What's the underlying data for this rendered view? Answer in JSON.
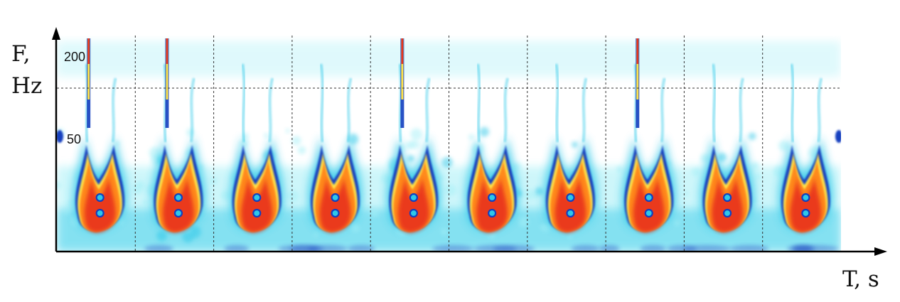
{
  "chart_data": {
    "type": "heatmap",
    "title": "",
    "xlabel": "T, s",
    "ylabel_line1": "F,",
    "ylabel_line2": "Hz",
    "y_ticks": [
      "200",
      "50"
    ],
    "y_tick_values": [
      200,
      50
    ],
    "y_gridline_value": 200,
    "grid": "vertical dashed lines between beats, one horizontal dashed line at 200 Hz",
    "colormap": [
      "#ffffff",
      "#a6f0f7",
      "#2ec8e8",
      "#123fbf",
      "#ffe24a",
      "#ff8a1c",
      "#e8311d"
    ],
    "beat_count": 10,
    "beats_with_high_frequency_spike": [
      1,
      2,
      5,
      8
    ],
    "description_of_marks": "Ten periodic heart-shaped spectral energy blobs at low frequency, each with two lobes extending upward; some beats show narrow high-frequency spikes reaching the top of the plot."
  }
}
